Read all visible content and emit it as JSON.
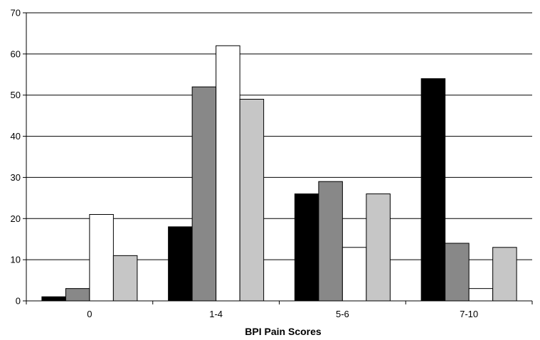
{
  "chart_data": {
    "type": "bar",
    "title": "",
    "xlabel": "BPI Pain Scores",
    "ylabel": "",
    "ylim": [
      0,
      70
    ],
    "yticks": [
      0,
      10,
      20,
      30,
      40,
      50,
      60,
      70
    ],
    "grid": true,
    "legend": "none",
    "categories": [
      "0",
      "1-4",
      "5-6",
      "7-10"
    ],
    "series": [
      {
        "color": "#000000",
        "values": [
          1,
          18,
          26,
          54
        ]
      },
      {
        "color": "#888888",
        "values": [
          3,
          52,
          29,
          14
        ]
      },
      {
        "color": "#ffffff",
        "values": [
          21,
          62,
          13,
          3
        ]
      },
      {
        "color": "#c6c6c6",
        "values": [
          11,
          49,
          26,
          13
        ]
      }
    ]
  }
}
